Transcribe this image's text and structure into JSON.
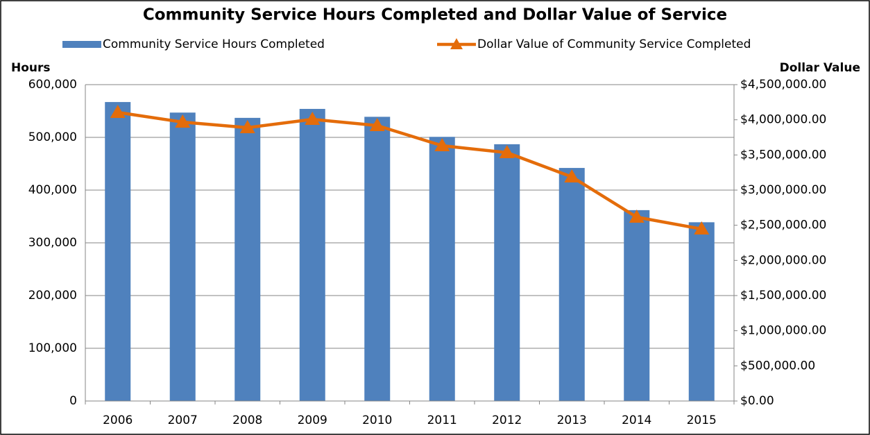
{
  "chart_data": {
    "type": "bar_line",
    "title": "Community Service Hours Completed and Dollar Value of Service",
    "ylabel": "Hours",
    "y2label": "Dollar Value",
    "categories": [
      "2006",
      "2007",
      "2008",
      "2009",
      "2010",
      "2011",
      "2012",
      "2013",
      "2014",
      "2015"
    ],
    "series": [
      {
        "name": "Community Service Hours Completed",
        "type": "bar",
        "color": "#4f81bd",
        "values": [
          567000,
          547000,
          537000,
          554000,
          539000,
          501000,
          487000,
          442000,
          362000,
          339000
        ]
      },
      {
        "name": "Dollar Value of Community Service Completed",
        "type": "line",
        "axis": "y2",
        "color": "#e46c0a",
        "values": [
          4105000,
          3967000,
          3888000,
          4007000,
          3918000,
          3632000,
          3533000,
          3188000,
          2615000,
          2447000
        ]
      }
    ],
    "ylim": [
      0,
      600000
    ],
    "yticks": [
      0,
      {
        "value": 100000,
        "label": "100,000"
      },
      {
        "value": 200000,
        "label": "200,000"
      },
      {
        "value": 300000,
        "label": "300,000"
      },
      {
        "value": 400000,
        "label": "400,000"
      },
      {
        "value": 500000,
        "label": "500,000"
      },
      {
        "value": 600000,
        "label": "600,000"
      }
    ],
    "y2lim": [
      0,
      4500000
    ],
    "y2ticks": [
      {
        "value": 0,
        "label": "$0.00"
      },
      {
        "value": 500000,
        "label": "$500,000.00"
      },
      {
        "value": 1000000,
        "label": "$1,000,000.00"
      },
      {
        "value": 1500000,
        "label": "$1,500,000.00"
      },
      {
        "value": 2000000,
        "label": "$2,000,000.00"
      },
      {
        "value": 2500000,
        "label": "$2,500,000.00"
      },
      {
        "value": 3000000,
        "label": "$3,000,000.00"
      },
      {
        "value": 3500000,
        "label": "$3,500,000.00"
      },
      {
        "value": 4000000,
        "label": "$4,000,000.00"
      },
      {
        "value": 4500000,
        "label": "$4,500,000.00"
      }
    ],
    "grid": true
  }
}
